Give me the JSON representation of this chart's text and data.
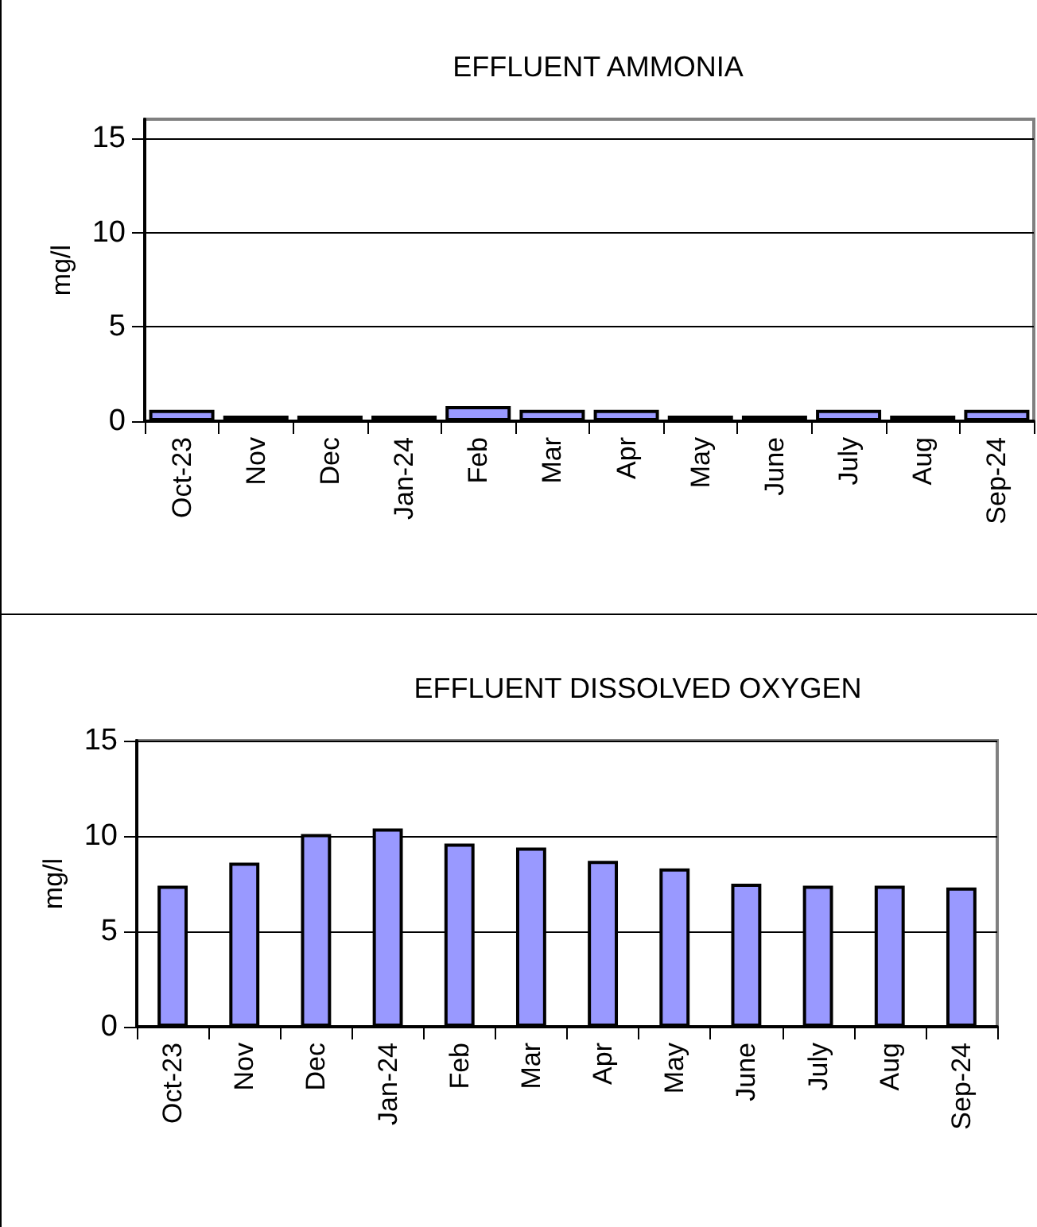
{
  "chart_data": [
    {
      "type": "bar",
      "title": "EFFLUENT AMMONIA",
      "ylabel": "mg/l",
      "categories": [
        "Oct-23",
        "Nov",
        "Dec",
        "Jan-24",
        "Feb",
        "Mar",
        "Apr",
        "May",
        "June",
        "July",
        "Aug",
        "Sep-24"
      ],
      "values": [
        0.6,
        0.3,
        0.3,
        0.3,
        0.8,
        0.6,
        0.6,
        0.3,
        0.3,
        0.6,
        0.3,
        0.6
      ],
      "color": "#9999ff",
      "ylim": [
        0,
        16
      ],
      "yticks": [
        0,
        5,
        10,
        15
      ],
      "grid": "y"
    },
    {
      "type": "bar",
      "title": "EFFLUENT DISSOLVED OXYGEN",
      "ylabel": "mg/l",
      "categories": [
        "Oct-23",
        "Nov",
        "Dec",
        "Jan-24",
        "Feb",
        "Mar",
        "Apr",
        "May",
        "June",
        "July",
        "Aug",
        "Sep-24"
      ],
      "values": [
        7.4,
        8.6,
        10.1,
        10.4,
        9.6,
        9.4,
        8.7,
        8.3,
        7.5,
        7.4,
        7.4,
        7.3
      ],
      "color": "#9999ff",
      "ylim": [
        0,
        15
      ],
      "yticks": [
        0,
        5,
        10,
        15
      ],
      "grid": "y"
    }
  ]
}
